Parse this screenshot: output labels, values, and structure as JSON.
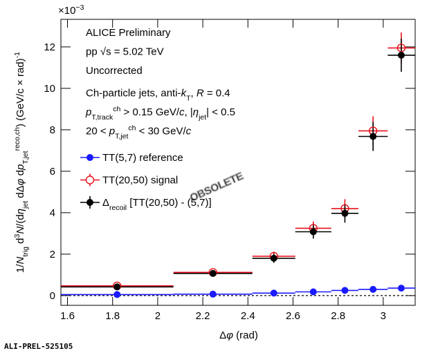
{
  "chart_data": {
    "type": "binned-points",
    "axis_multiplier": [
      {
        "text": "×10"
      },
      {
        "text": "−3",
        "style": "sup"
      }
    ],
    "xlabel": [
      {
        "text": "Δ"
      },
      {
        "text": "φ",
        "style": "italic"
      },
      {
        "text": " (rad)"
      }
    ],
    "ylabel": [
      {
        "text": "1/"
      },
      {
        "text": "N",
        "style": "italic"
      },
      {
        "text": "trig",
        "style": "sub"
      },
      {
        "text": " d"
      },
      {
        "text": "3",
        "style": "sup"
      },
      {
        "text": "N",
        "style": "italic"
      },
      {
        "text": "/(d"
      },
      {
        "text": "η",
        "style": "italic"
      },
      {
        "text": "jet",
        "style": "sub"
      },
      {
        "text": " dΔ"
      },
      {
        "text": "φ",
        "style": "italic"
      },
      {
        "text": " d"
      },
      {
        "text": "p",
        "style": "italic"
      },
      {
        "text": "T,jet",
        "style": "sub"
      },
      {
        "text": "reco,ch",
        "style": "sup"
      },
      {
        "text": ") (GeV/c × rad)"
      },
      {
        "text": "-1",
        "style": "sup"
      }
    ],
    "annotations": [
      [
        {
          "text": "ALICE Preliminary"
        }
      ],
      [
        {
          "text": "pp √s = 5.02 TeV"
        }
      ],
      [
        {
          "text": "Uncorrected"
        }
      ],
      [
        {
          "text": "Ch-particle jets, anti-"
        },
        {
          "text": "k",
          "style": "italic"
        },
        {
          "text": "T",
          "style": "sub"
        },
        {
          "text": ", "
        },
        {
          "text": "R",
          "style": "italic"
        },
        {
          "text": " = 0.4"
        }
      ],
      [
        {
          "text": "p",
          "style": "italic"
        },
        {
          "text": "T,track",
          "style": "sub"
        },
        {
          "text": "ch",
          "style": "sup"
        },
        {
          "text": " > 0.15 GeV/"
        },
        {
          "text": "c",
          "style": "italic"
        },
        {
          "text": ", |"
        },
        {
          "text": "η",
          "style": "italic"
        },
        {
          "text": "jet",
          "style": "sub"
        },
        {
          "text": "| < 0.5"
        }
      ],
      [
        {
          "text": "20 < "
        },
        {
          "text": "p",
          "style": "italic"
        },
        {
          "text": "T,jet",
          "style": "sub"
        },
        {
          "text": "ch",
          "style": "sup"
        },
        {
          "text": " < 30 GeV/"
        },
        {
          "text": "c",
          "style": "italic"
        }
      ]
    ],
    "watermark": "OBSOLETE",
    "footer": "ALI-PREL-525105",
    "bins": [
      1.5708,
      2.07,
      2.42,
      2.61,
      2.77,
      2.89,
      3.02,
      3.1416
    ],
    "x": [
      1.82,
      2.245,
      2.515,
      2.69,
      2.83,
      2.955,
      3.08
    ],
    "series": [
      {
        "name": [
          {
            "text": "TT(5,7) reference"
          }
        ],
        "color": "#1a1aff",
        "marker": "filled",
        "values": [
          0.05,
          0.07,
          0.12,
          0.18,
          0.25,
          0.3,
          0.36
        ]
      },
      {
        "name": [
          {
            "text": "TT(20,50) signal"
          }
        ],
        "color": "#e8101a",
        "marker": "open",
        "values": [
          0.47,
          1.12,
          1.9,
          3.25,
          4.2,
          7.95,
          11.95
        ],
        "errors": [
          0.04,
          0.05,
          0.22,
          0.33,
          0.45,
          0.7,
          0.75
        ]
      },
      {
        "name": [
          {
            "text": "Δ"
          },
          {
            "text": "recoil",
            "style": "sub"
          },
          {
            "text": " [TT(20,50) - (5,7)]"
          }
        ],
        "color": "#000000",
        "marker": "filled",
        "values": [
          0.42,
          1.07,
          1.8,
          3.08,
          3.97,
          7.68,
          11.6
        ],
        "errors": [
          0.04,
          0.05,
          0.22,
          0.33,
          0.45,
          0.7,
          0.8
        ]
      }
    ],
    "hline": 0,
    "xlim": [
      1.5708,
      3.1416
    ],
    "ylim": [
      -0.47,
      13.33
    ],
    "xticks": [
      1.6,
      1.8,
      2,
      2.2,
      2.4,
      2.6,
      2.8,
      3
    ],
    "yticks": [
      0,
      2,
      4,
      6,
      8,
      10,
      12
    ]
  }
}
